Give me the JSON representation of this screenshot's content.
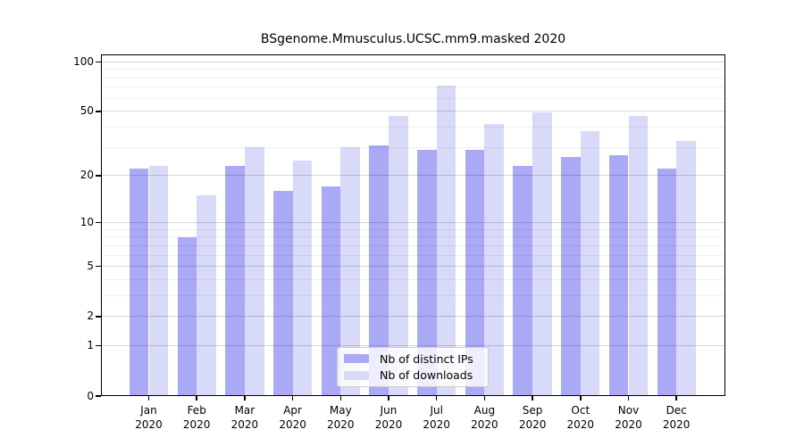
{
  "chart_data": {
    "type": "bar",
    "title": "BSgenome.Mmusculus.UCSC.mm9.masked 2020",
    "scale": "log1p",
    "categories": [
      "Jan",
      "Feb",
      "Mar",
      "Apr",
      "May",
      "Jun",
      "Jul",
      "Aug",
      "Sep",
      "Oct",
      "Nov",
      "Dec"
    ],
    "year_label": "2020",
    "series": [
      {
        "name": "Nb of distinct IPs",
        "color": "#a9a9f5",
        "values": [
          22,
          8,
          23,
          16,
          17,
          31,
          29,
          29,
          23,
          26,
          27,
          22
        ]
      },
      {
        "name": "Nb of downloads",
        "color": "#d9d9f8",
        "values": [
          23,
          15,
          30,
          25,
          30,
          47,
          72,
          42,
          49,
          38,
          47,
          33
        ]
      }
    ],
    "y_ticks": [
      0,
      1,
      2,
      5,
      10,
      20,
      50,
      100
    ],
    "minor_gridlines": [
      3,
      4,
      6,
      7,
      8,
      9,
      30,
      40,
      60,
      70,
      80,
      90
    ],
    "ylim": [
      0,
      111
    ],
    "xlabel": "",
    "ylabel": "",
    "grid": "horizontal",
    "legend_position": "lower-center-inside"
  },
  "colors": {
    "axis": "#000000",
    "major_grid": "#d9d9d9",
    "minor_grid": "#efefef",
    "legend_border": "#cccccc",
    "background": "#ffffff"
  }
}
